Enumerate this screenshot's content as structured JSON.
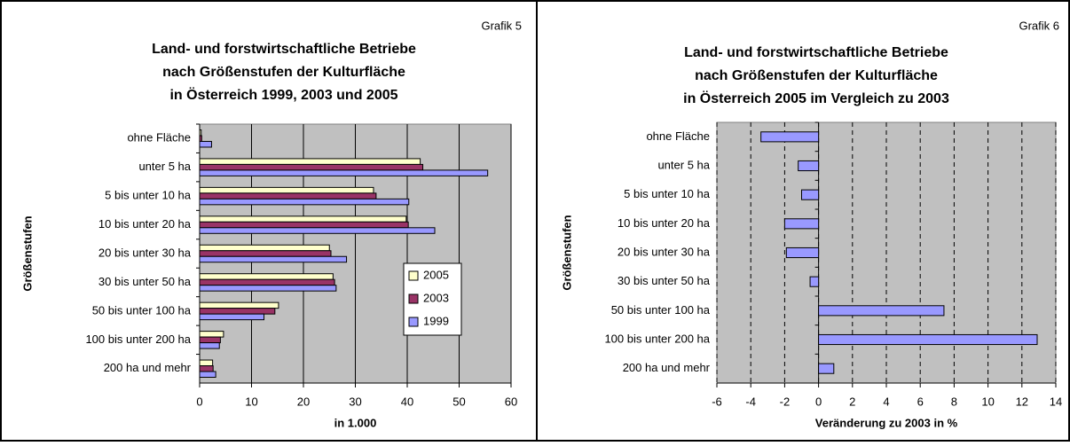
{
  "chart_data": [
    {
      "type": "bar",
      "orientation": "horizontal",
      "corner_label": "Grafik 5",
      "title": [
        "Land- und forstwirtschaftliche Betriebe",
        "nach Größenstufen der Kulturfläche",
        "in Österreich 1999, 2003 und 2005"
      ],
      "ylabel": "Größenstufen",
      "xlabel": "in 1.000",
      "categories": [
        "ohne Fläche",
        "unter 5 ha",
        "5 bis unter 10 ha",
        "10 bis unter 20 ha",
        "20 bis unter 30 ha",
        "30 bis unter 50 ha",
        "50 bis unter 100 ha",
        "100 bis unter 200 ha",
        "200 ha und mehr"
      ],
      "series": [
        {
          "name": "2005",
          "color": "#ffffcc",
          "values": [
            0.3,
            42.5,
            33.5,
            39.8,
            25,
            25.7,
            15.2,
            4.6,
            2.5
          ]
        },
        {
          "name": "2003",
          "color": "#993366",
          "values": [
            0.4,
            43,
            34,
            40.2,
            25.3,
            26,
            14.5,
            4,
            2.6
          ]
        },
        {
          "name": "1999",
          "color": "#9999ff",
          "values": [
            2.3,
            55.5,
            40.3,
            45.3,
            28.3,
            26.3,
            12.4,
            3.8,
            3.1
          ]
        }
      ],
      "xlim": [
        0,
        60
      ],
      "xticks": [
        0,
        10,
        20,
        30,
        40,
        50,
        60
      ],
      "grid": true,
      "grid_style": "solid",
      "legend": "right"
    },
    {
      "type": "bar",
      "orientation": "horizontal",
      "corner_label": "Grafik 6",
      "title": [
        "Land- und forstwirtschaftliche Betriebe",
        "nach Größenstufen der Kulturfläche",
        "in Österreich 2005 im Vergleich zu 2003"
      ],
      "ylabel": "Größenstufen",
      "xlabel": "Veränderung zu 2003 in %",
      "categories": [
        "ohne Fläche",
        "unter 5 ha",
        "5 bis unter 10 ha",
        "10 bis unter 20 ha",
        "20 bis unter 30 ha",
        "30 bis unter 50 ha",
        "50 bis unter 100 ha",
        "100 bis unter 200 ha",
        "200 ha und mehr"
      ],
      "series": [
        {
          "color": "#9999ff",
          "values": [
            -3.4,
            -1.2,
            -1.0,
            -2.0,
            -1.9,
            -0.5,
            7.4,
            12.9,
            0.9
          ]
        }
      ],
      "xlim": [
        -6,
        14
      ],
      "xticks": [
        -6,
        -4,
        -2,
        0,
        2,
        4,
        6,
        8,
        10,
        12,
        14
      ],
      "grid": true,
      "grid_style": "dashed"
    }
  ]
}
